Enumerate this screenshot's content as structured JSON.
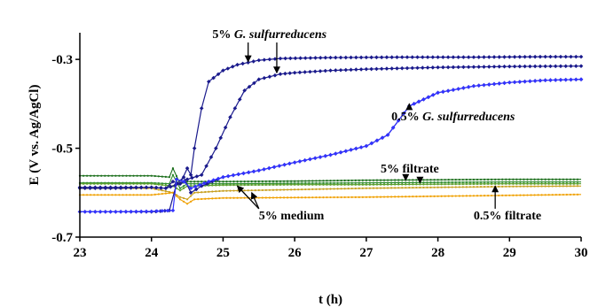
{
  "chart_data": {
    "type": "line",
    "xlabel": "t (h)",
    "ylabel": "E (V vs. Ag/AgCl)",
    "xlim": [
      23,
      30
    ],
    "ylim": [
      -0.7,
      -0.24
    ],
    "xticks": [
      23,
      24,
      25,
      26,
      27,
      28,
      29,
      30
    ],
    "yticks": [
      -0.3,
      -0.5,
      -0.7
    ],
    "xtick_labels": [
      "23",
      "24",
      "25",
      "26",
      "27",
      "28",
      "29",
      "30"
    ],
    "ytick_labels": [
      "-0.3",
      "-0.5",
      "-0.7"
    ],
    "grid": false,
    "legend": "none",
    "series": [
      {
        "color": "#1a1a8c",
        "marker": "diamond",
        "points": [
          [
            23,
            -0.588
          ],
          [
            23.5,
            -0.588
          ],
          [
            24,
            -0.588
          ],
          [
            24.2,
            -0.59
          ],
          [
            24.3,
            -0.575
          ],
          [
            24.4,
            -0.58
          ],
          [
            24.5,
            -0.545
          ],
          [
            24.55,
            -0.56
          ],
          [
            24.6,
            -0.5
          ],
          [
            24.7,
            -0.41
          ],
          [
            24.8,
            -0.35
          ],
          [
            25,
            -0.325
          ],
          [
            25.2,
            -0.312
          ],
          [
            25.5,
            -0.302
          ],
          [
            25.8,
            -0.298
          ],
          [
            26.5,
            -0.296
          ],
          [
            27.5,
            -0.295
          ],
          [
            28.5,
            -0.295
          ],
          [
            29.5,
            -0.294
          ],
          [
            30,
            -0.294
          ]
        ]
      },
      {
        "color": "#1a1a8c",
        "marker": "diamond",
        "points": [
          [
            23,
            -0.59
          ],
          [
            23.5,
            -0.59
          ],
          [
            24,
            -0.588
          ],
          [
            24.2,
            -0.59
          ],
          [
            24.4,
            -0.58
          ],
          [
            24.5,
            -0.57
          ],
          [
            24.7,
            -0.56
          ],
          [
            24.9,
            -0.5
          ],
          [
            25.1,
            -0.43
          ],
          [
            25.3,
            -0.37
          ],
          [
            25.5,
            -0.345
          ],
          [
            25.8,
            -0.333
          ],
          [
            26,
            -0.33
          ],
          [
            26.5,
            -0.325
          ],
          [
            27,
            -0.322
          ],
          [
            28,
            -0.318
          ],
          [
            29,
            -0.316
          ],
          [
            30,
            -0.315
          ]
        ]
      },
      {
        "color": "#1a1a8c",
        "marker": "diamond",
        "points": [
          [
            23,
            -0.643
          ],
          [
            23.5,
            -0.643
          ],
          [
            24,
            -0.643
          ],
          [
            24.25,
            -0.64
          ],
          [
            24.35,
            -0.58
          ],
          [
            24.45,
            -0.565
          ],
          [
            24.55,
            -0.6
          ],
          [
            24.7,
            -0.585
          ],
          [
            25,
            -0.565
          ],
          [
            25.5,
            -0.55
          ],
          [
            26,
            -0.532
          ],
          [
            26.5,
            -0.515
          ],
          [
            27,
            -0.495
          ],
          [
            27.3,
            -0.47
          ],
          [
            27.6,
            -0.405
          ],
          [
            28,
            -0.375
          ],
          [
            28.5,
            -0.36
          ],
          [
            29,
            -0.352
          ],
          [
            29.5,
            -0.347
          ],
          [
            30,
            -0.345
          ]
        ]
      },
      {
        "color": "#3333ff",
        "marker": "diamond",
        "points": [
          [
            23,
            -0.643
          ],
          [
            23.5,
            -0.643
          ],
          [
            24,
            -0.642
          ],
          [
            24.3,
            -0.64
          ],
          [
            24.35,
            -0.57
          ],
          [
            24.45,
            -0.575
          ],
          [
            24.55,
            -0.59
          ],
          [
            24.8,
            -0.575
          ],
          [
            25,
            -0.565
          ],
          [
            25.5,
            -0.55
          ],
          [
            26,
            -0.532
          ],
          [
            26.5,
            -0.515
          ],
          [
            27,
            -0.495
          ],
          [
            27.3,
            -0.47
          ],
          [
            27.6,
            -0.405
          ],
          [
            28,
            -0.375
          ],
          [
            28.5,
            -0.36
          ],
          [
            29,
            -0.352
          ],
          [
            29.5,
            -0.347
          ],
          [
            30,
            -0.345
          ]
        ]
      },
      {
        "color": "#1a6e1a",
        "marker": "dot",
        "points": [
          [
            23,
            -0.562
          ],
          [
            24,
            -0.562
          ],
          [
            24.25,
            -0.565
          ],
          [
            24.3,
            -0.545
          ],
          [
            24.4,
            -0.58
          ],
          [
            24.5,
            -0.575
          ],
          [
            24.6,
            -0.575
          ],
          [
            25,
            -0.575
          ],
          [
            26,
            -0.574
          ],
          [
            27,
            -0.572
          ],
          [
            28,
            -0.571
          ],
          [
            29,
            -0.57
          ],
          [
            30,
            -0.57
          ]
        ]
      },
      {
        "color": "#2e8b2e",
        "marker": "dot",
        "points": [
          [
            23,
            -0.578
          ],
          [
            24,
            -0.578
          ],
          [
            24.25,
            -0.58
          ],
          [
            24.3,
            -0.56
          ],
          [
            24.4,
            -0.59
          ],
          [
            24.5,
            -0.58
          ],
          [
            25,
            -0.58
          ],
          [
            26,
            -0.579
          ],
          [
            27,
            -0.578
          ],
          [
            28,
            -0.577
          ],
          [
            29,
            -0.576
          ],
          [
            30,
            -0.576
          ]
        ]
      },
      {
        "color": "#5a9e2a",
        "marker": "dot",
        "points": [
          [
            23,
            -0.58
          ],
          [
            24,
            -0.58
          ],
          [
            24.3,
            -0.585
          ],
          [
            24.4,
            -0.595
          ],
          [
            24.5,
            -0.585
          ],
          [
            25,
            -0.583
          ],
          [
            26,
            -0.582
          ],
          [
            27,
            -0.582
          ],
          [
            28,
            -0.581
          ],
          [
            29,
            -0.58
          ],
          [
            30,
            -0.58
          ]
        ]
      },
      {
        "color": "#c8a020",
        "marker": "dot",
        "points": [
          [
            23,
            -0.59
          ],
          [
            24,
            -0.59
          ],
          [
            24.3,
            -0.6
          ],
          [
            24.4,
            -0.61
          ],
          [
            24.5,
            -0.615
          ],
          [
            24.6,
            -0.6
          ],
          [
            25,
            -0.596
          ],
          [
            26,
            -0.593
          ],
          [
            27,
            -0.59
          ],
          [
            28,
            -0.588
          ],
          [
            29,
            -0.586
          ],
          [
            30,
            -0.585
          ]
        ]
      },
      {
        "color": "#f0a000",
        "marker": "dot",
        "points": [
          [
            23,
            -0.605
          ],
          [
            24,
            -0.605
          ],
          [
            24.3,
            -0.6
          ],
          [
            24.4,
            -0.615
          ],
          [
            24.5,
            -0.625
          ],
          [
            24.6,
            -0.615
          ],
          [
            25,
            -0.612
          ],
          [
            26,
            -0.611
          ],
          [
            27,
            -0.61
          ],
          [
            28,
            -0.608
          ],
          [
            29,
            -0.606
          ],
          [
            30,
            -0.604
          ]
        ]
      }
    ],
    "annotations": [
      {
        "parts": [
          {
            "text": "5% ",
            "italic": false
          },
          {
            "text": "G. sulfurreducens",
            "italic": true
          }
        ],
        "text_at": [
          24.85,
          -0.252
        ],
        "arrows_to": [
          [
            25.35,
            -0.305
          ],
          [
            25.75,
            -0.33
          ]
        ]
      },
      {
        "parts": [
          {
            "text": "0.5% ",
            "italic": false
          },
          {
            "text": "G. sulfurreducens",
            "italic": true
          }
        ],
        "text_at": [
          27.35,
          -0.437
        ],
        "arrows_to": [
          [
            27.6,
            -0.4
          ]
        ]
      },
      {
        "parts": [
          {
            "text": "5% filtrate",
            "italic": false
          }
        ],
        "text_at": [
          27.2,
          -0.555
        ],
        "arrows_to": [
          [
            27.55,
            -0.572
          ],
          [
            27.75,
            -0.578
          ]
        ]
      },
      {
        "parts": [
          {
            "text": "5% medium",
            "italic": false
          }
        ],
        "text_at": [
          25.5,
          -0.66
        ],
        "arrows_to": [
          [
            25.4,
            -0.6
          ],
          [
            25.2,
            -0.585
          ]
        ]
      },
      {
        "parts": [
          {
            "text": "0.5% filtrate",
            "italic": false
          }
        ],
        "text_at": [
          28.5,
          -0.66
        ],
        "arrows_to": [
          [
            28.8,
            -0.585
          ]
        ]
      }
    ]
  }
}
